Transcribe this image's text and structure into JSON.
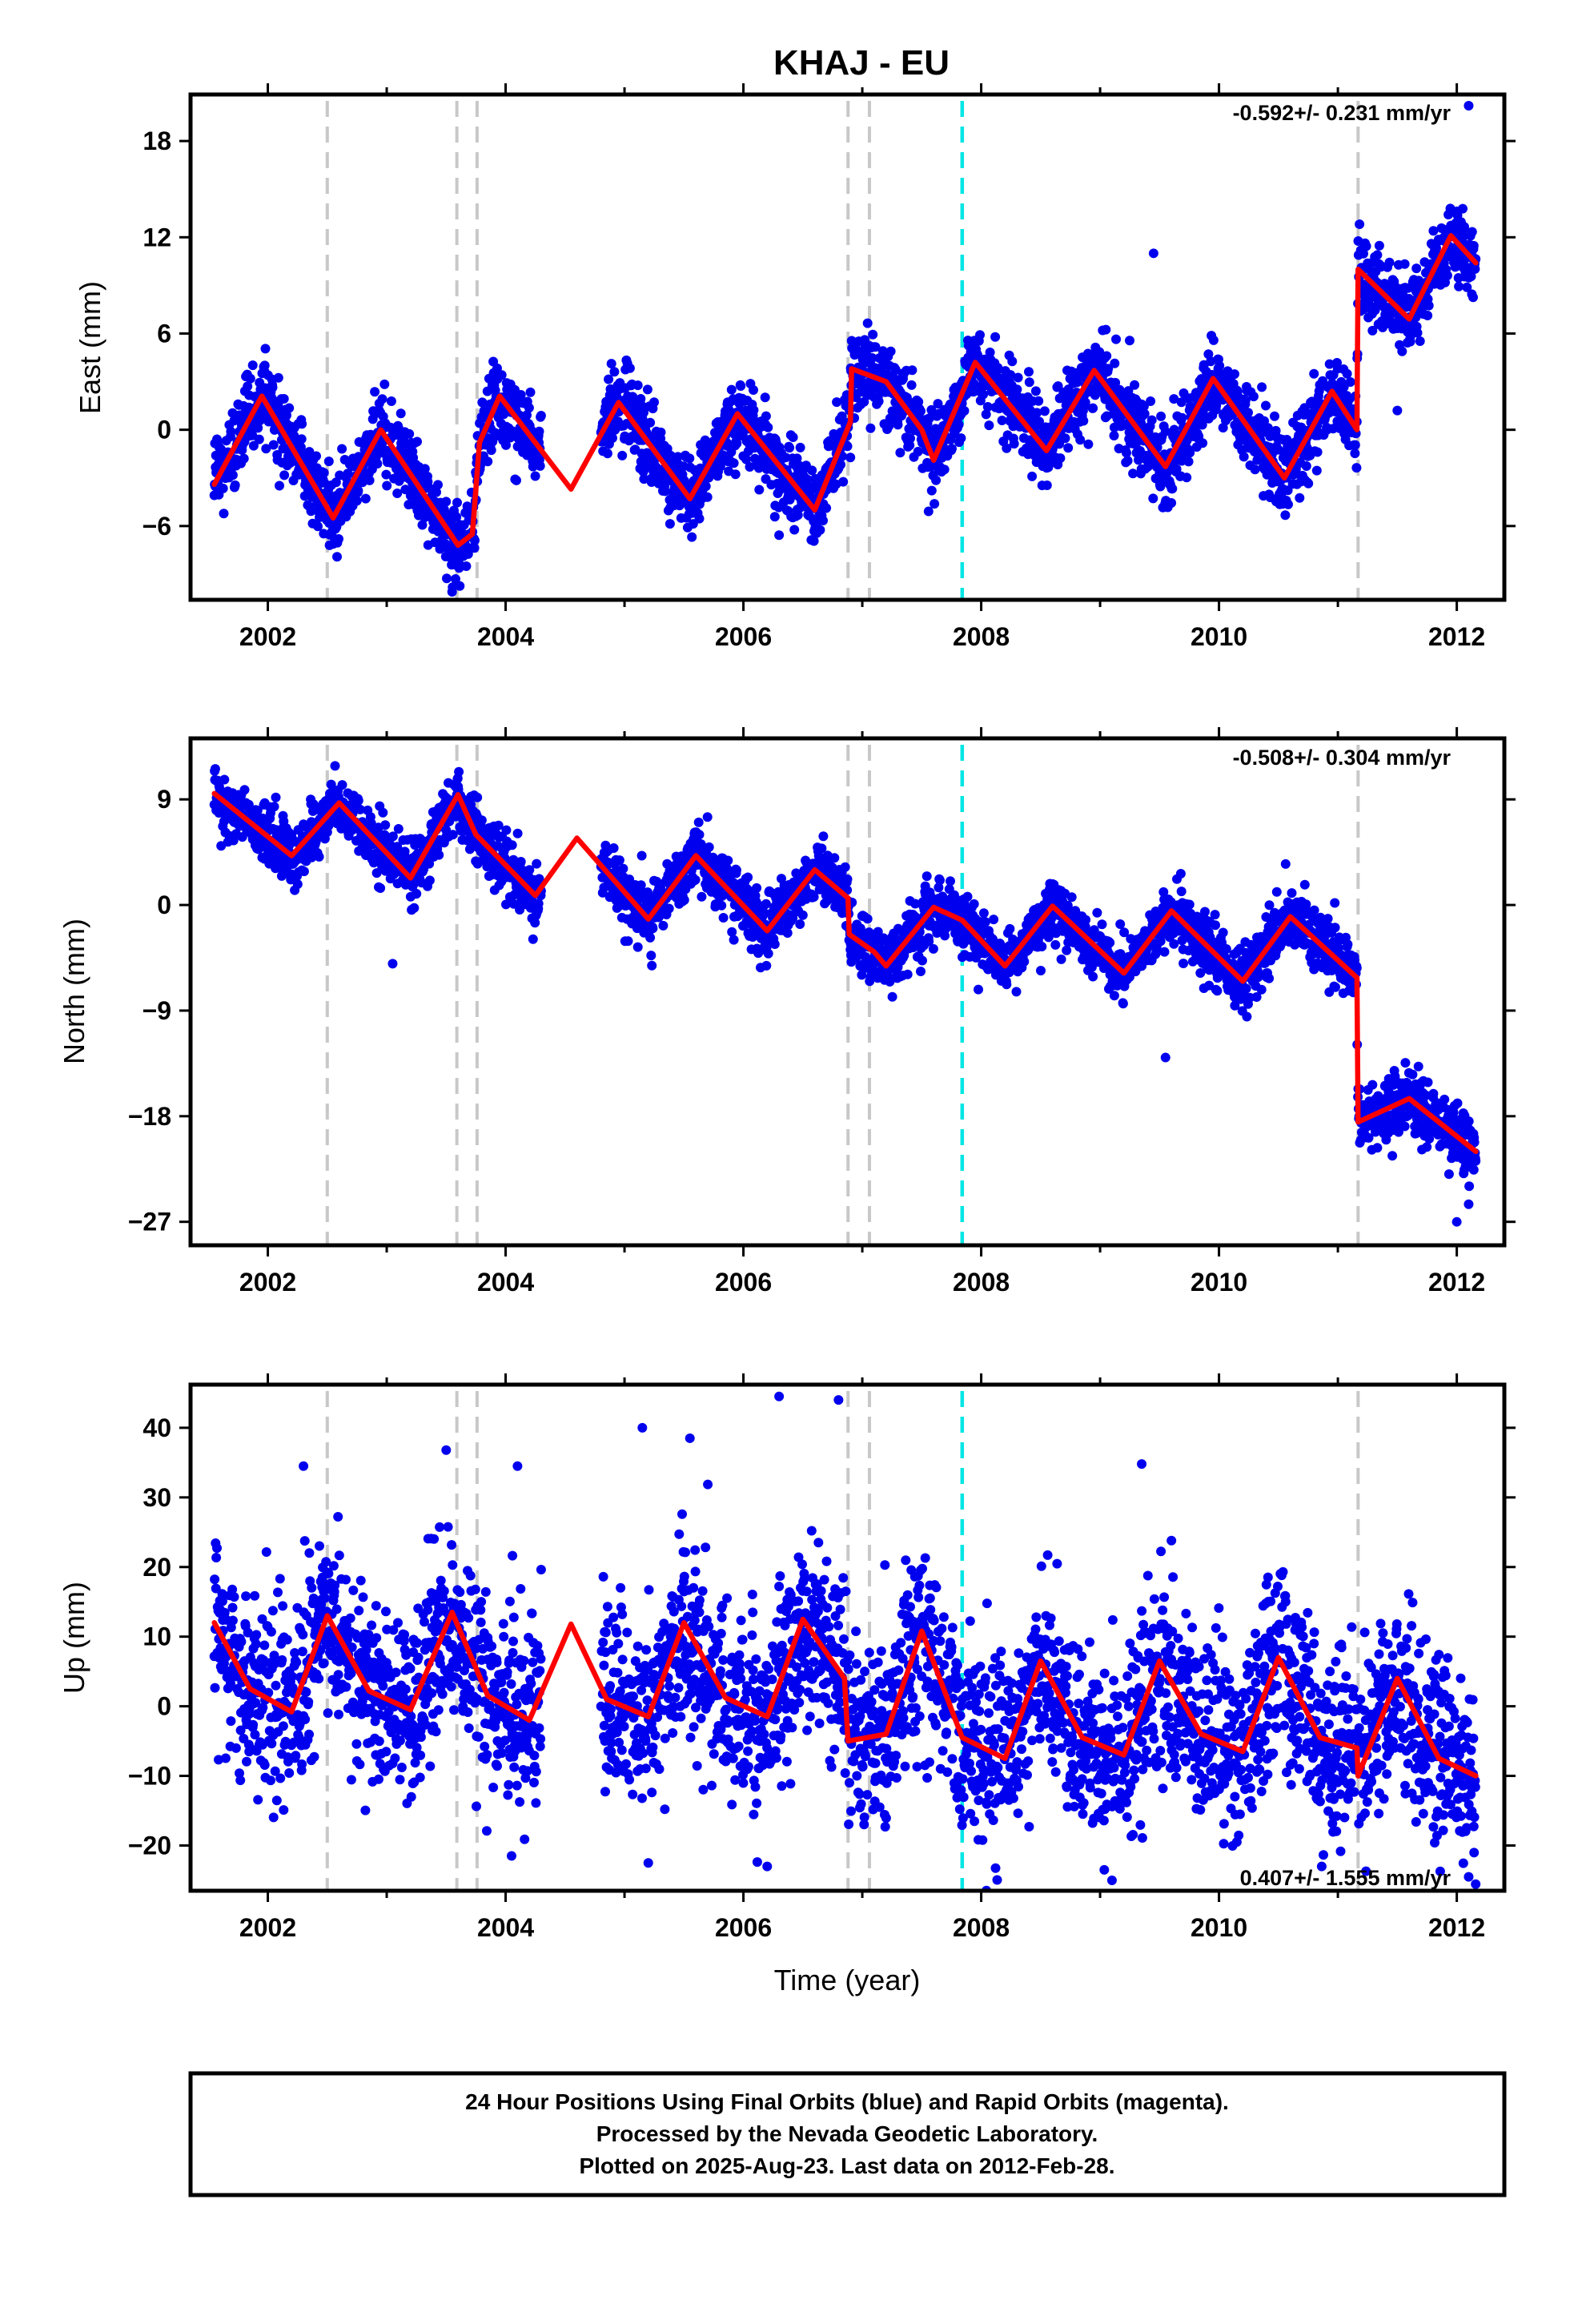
{
  "title": "KHAJ - EU",
  "xlabel": "Time (year)",
  "footer": {
    "line1": "24 Hour Positions Using Final Orbits (blue) and Rapid Orbits (magenta).",
    "line2": "Processed by the Nevada Geodetic Laboratory.",
    "line3": "Plotted on 2025-Aug-23. Last data on 2012-Feb-28."
  },
  "colors": {
    "points": "#0000ee",
    "model": "#ff0000",
    "event_line": "#c8c8c8",
    "antenna_line": "#00e5e5",
    "axes": "#000000"
  },
  "chart_data": [
    {
      "type": "scatter",
      "component": "east",
      "ylabel": "East (mm)",
      "rate_text": "-0.592+/- 0.231 mm/yr",
      "xlim": [
        2001.35,
        2012.4
      ],
      "ylim": [
        -10.6,
        20.9
      ],
      "yticks": [
        -6,
        0,
        6,
        12,
        18
      ],
      "xticks": [
        2002,
        2004,
        2006,
        2008,
        2010,
        2012
      ],
      "grid": false,
      "model": {
        "trend": [
          {
            "t0": 2001.55,
            "t1": 2003.7,
            "v0": -1.5,
            "v1": -3.2
          },
          {
            "t0": 2003.7,
            "t1": 2006.9,
            "v0": -0.8,
            "v1": -1.2
          },
          {
            "t0": 2006.9,
            "t1": 2011.17,
            "v0": 1.6,
            "v1": 0.0
          },
          {
            "t0": 2011.17,
            "t1": 2012.16,
            "v0": 8.3,
            "v1": 9.6
          }
        ],
        "amplitude": 3.3,
        "phase_peak": 0.93
      },
      "model_polyline": [
        [
          2001.55,
          -3.4
        ],
        [
          2001.95,
          2.1
        ],
        [
          2002.55,
          -5.5
        ],
        [
          2002.95,
          0.0
        ],
        [
          2003.6,
          -7.2
        ],
        [
          2003.72,
          -6.5
        ],
        [
          2003.78,
          -0.8
        ],
        [
          2003.95,
          2.1
        ],
        [
          2004.55,
          -3.7
        ],
        [
          2004.95,
          1.7
        ],
        [
          2005.55,
          -4.3
        ],
        [
          2005.95,
          1.0
        ],
        [
          2006.6,
          -5.0
        ],
        [
          2006.9,
          0.5
        ],
        [
          2006.91,
          3.8
        ],
        [
          2007.2,
          3.0
        ],
        [
          2007.5,
          0.0
        ],
        [
          2007.6,
          -1.9
        ],
        [
          2007.95,
          4.2
        ],
        [
          2008.55,
          -1.3
        ],
        [
          2008.95,
          3.7
        ],
        [
          2009.55,
          -2.3
        ],
        [
          2009.95,
          3.2
        ],
        [
          2010.55,
          -3.0
        ],
        [
          2010.95,
          2.4
        ],
        [
          2011.16,
          0.0
        ],
        [
          2011.17,
          10.0
        ],
        [
          2011.6,
          6.9
        ],
        [
          2011.95,
          12.1
        ],
        [
          2012.16,
          10.4
        ]
      ],
      "gaps": [
        [
          2004.3,
          2004.8
        ]
      ],
      "noise": 1.2,
      "outliers": [
        {
          "x": 2012.1,
          "y": 20.2
        },
        {
          "x": 2009.45,
          "y": 11.0
        },
        {
          "x": 2011.5,
          "y": 1.2
        },
        {
          "x": 2003.55,
          "y": -10.1
        }
      ],
      "events": [
        2002.5,
        2003.59,
        2003.76,
        2006.88,
        2007.06,
        2011.17
      ],
      "antenna_changes": [
        2007.84
      ]
    },
    {
      "type": "scatter",
      "component": "north",
      "ylabel": "North (mm)",
      "rate_text": "-0.508+/- 0.304 mm/yr",
      "xlim": [
        2001.35,
        2012.4
      ],
      "ylim": [
        -29.0,
        14.2
      ],
      "yticks": [
        -27,
        -18,
        -9,
        0,
        9
      ],
      "xticks": [
        2002,
        2004,
        2006,
        2008,
        2010,
        2012
      ],
      "grid": false,
      "model": {
        "trend": [
          {
            "t0": 2001.55,
            "t1": 2006.9,
            "v0": 8.6,
            "v1": -1.0
          },
          {
            "t0": 2006.9,
            "t1": 2011.17,
            "v0": -4.2,
            "v1": -6.6
          },
          {
            "t0": 2011.17,
            "t1": 2012.16,
            "v0": -16.2,
            "v1": -20.8
          }
        ],
        "amplitude": 2.4,
        "phase_peak": 0.55
      },
      "model_polyline": [
        [
          2001.55,
          9.5
        ],
        [
          2002.2,
          4.2
        ],
        [
          2002.6,
          8.7
        ],
        [
          2003.2,
          2.3
        ],
        [
          2003.6,
          9.4
        ],
        [
          2003.75,
          6.0
        ],
        [
          2004.25,
          0.8
        ],
        [
          2004.6,
          5.7
        ],
        [
          2005.2,
          -1.2
        ],
        [
          2005.6,
          4.2
        ],
        [
          2006.2,
          -2.2
        ],
        [
          2006.6,
          3.0
        ],
        [
          2006.88,
          0.6
        ],
        [
          2006.89,
          -2.5
        ],
        [
          2007.1,
          -4.0
        ],
        [
          2007.2,
          -5.2
        ],
        [
          2007.6,
          -0.2
        ],
        [
          2007.84,
          -1.3
        ],
        [
          2008.2,
          -5.2
        ],
        [
          2008.6,
          -0.1
        ],
        [
          2009.2,
          -5.8
        ],
        [
          2009.6,
          -0.5
        ],
        [
          2010.2,
          -6.5
        ],
        [
          2010.6,
          -1.0
        ],
        [
          2011.16,
          -6.2
        ],
        [
          2011.17,
          -18.5
        ],
        [
          2011.6,
          -16.5
        ],
        [
          2012.16,
          -21.0
        ]
      ],
      "gaps": [
        [
          2004.3,
          2004.8
        ]
      ],
      "noise": 1.25,
      "outliers": [
        {
          "x": 2003.05,
          "y": -5.0
        },
        {
          "x": 2009.55,
          "y": -13.0
        },
        {
          "x": 2012.0,
          "y": -27.0
        },
        {
          "x": 2012.1,
          "y": -25.5
        }
      ],
      "events": [
        2002.5,
        2003.59,
        2003.76,
        2006.88,
        2007.06,
        2011.17
      ],
      "antenna_changes": [
        2007.84
      ]
    },
    {
      "type": "scatter",
      "component": "up",
      "ylabel": "Up (mm)",
      "rate_text": "0.407+/- 1.555 mm/yr",
      "xlim": [
        2001.35,
        2012.4
      ],
      "ylim": [
        -26.5,
        46.2
      ],
      "yticks": [
        -20,
        -10,
        0,
        10,
        20,
        30,
        40
      ],
      "xticks": [
        2002,
        2004,
        2006,
        2008,
        2010,
        2012
      ],
      "grid": false,
      "model": {
        "trend": [
          {
            "t0": 2001.55,
            "t1": 2012.16,
            "v0": 0.0,
            "v1": 0.0
          }
        ],
        "amplitude": 6.0,
        "phase_peak": 0.5
      },
      "model_polyline": [
        [
          2001.55,
          12.0
        ],
        [
          2001.85,
          2.5
        ],
        [
          2002.2,
          -0.8
        ],
        [
          2002.5,
          13.0
        ],
        [
          2002.85,
          2.2
        ],
        [
          2003.2,
          -0.5
        ],
        [
          2003.55,
          13.5
        ],
        [
          2003.85,
          1.5
        ],
        [
          2004.2,
          -2.0
        ],
        [
          2004.55,
          11.8
        ],
        [
          2004.85,
          1.0
        ],
        [
          2005.2,
          -1.5
        ],
        [
          2005.5,
          12.0
        ],
        [
          2005.85,
          1.2
        ],
        [
          2006.2,
          -1.5
        ],
        [
          2006.5,
          12.5
        ],
        [
          2006.85,
          4.0
        ],
        [
          2006.88,
          -5.0
        ],
        [
          2007.2,
          -4.0
        ],
        [
          2007.5,
          10.8
        ],
        [
          2007.84,
          -4.5
        ],
        [
          2008.2,
          -7.5
        ],
        [
          2008.5,
          6.5
        ],
        [
          2008.85,
          -4.5
        ],
        [
          2009.2,
          -7.0
        ],
        [
          2009.5,
          6.5
        ],
        [
          2009.85,
          -4.0
        ],
        [
          2010.2,
          -6.5
        ],
        [
          2010.5,
          7.0
        ],
        [
          2010.85,
          -4.5
        ],
        [
          2011.16,
          -6.0
        ],
        [
          2011.17,
          -10.0
        ],
        [
          2011.5,
          4.0
        ],
        [
          2011.85,
          -7.5
        ],
        [
          2012.16,
          -10.0
        ]
      ],
      "gaps": [
        [
          2004.3,
          2004.8
        ]
      ],
      "noise": 6.8,
      "outliers": [
        {
          "x": 2002.3,
          "y": 34.5
        },
        {
          "x": 2003.5,
          "y": 36.8
        },
        {
          "x": 2004.1,
          "y": 34.5
        },
        {
          "x": 2005.15,
          "y": 40.0
        },
        {
          "x": 2005.55,
          "y": 38.5
        },
        {
          "x": 2006.3,
          "y": 44.5
        },
        {
          "x": 2006.8,
          "y": 44.0
        },
        {
          "x": 2009.35,
          "y": 34.8
        },
        {
          "x": 2009.6,
          "y": 23.8
        },
        {
          "x": 2006.2,
          "y": -23.0
        },
        {
          "x": 2005.2,
          "y": -22.5
        },
        {
          "x": 2004.05,
          "y": -21.5
        },
        {
          "x": 2009.1,
          "y": -25.0
        },
        {
          "x": 2012.1,
          "y": -24.5
        },
        {
          "x": 2010.15,
          "y": -19.5
        }
      ],
      "events": [
        2002.5,
        2003.59,
        2003.76,
        2006.88,
        2007.06,
        2011.17
      ],
      "antenna_changes": [
        2007.84
      ]
    }
  ]
}
